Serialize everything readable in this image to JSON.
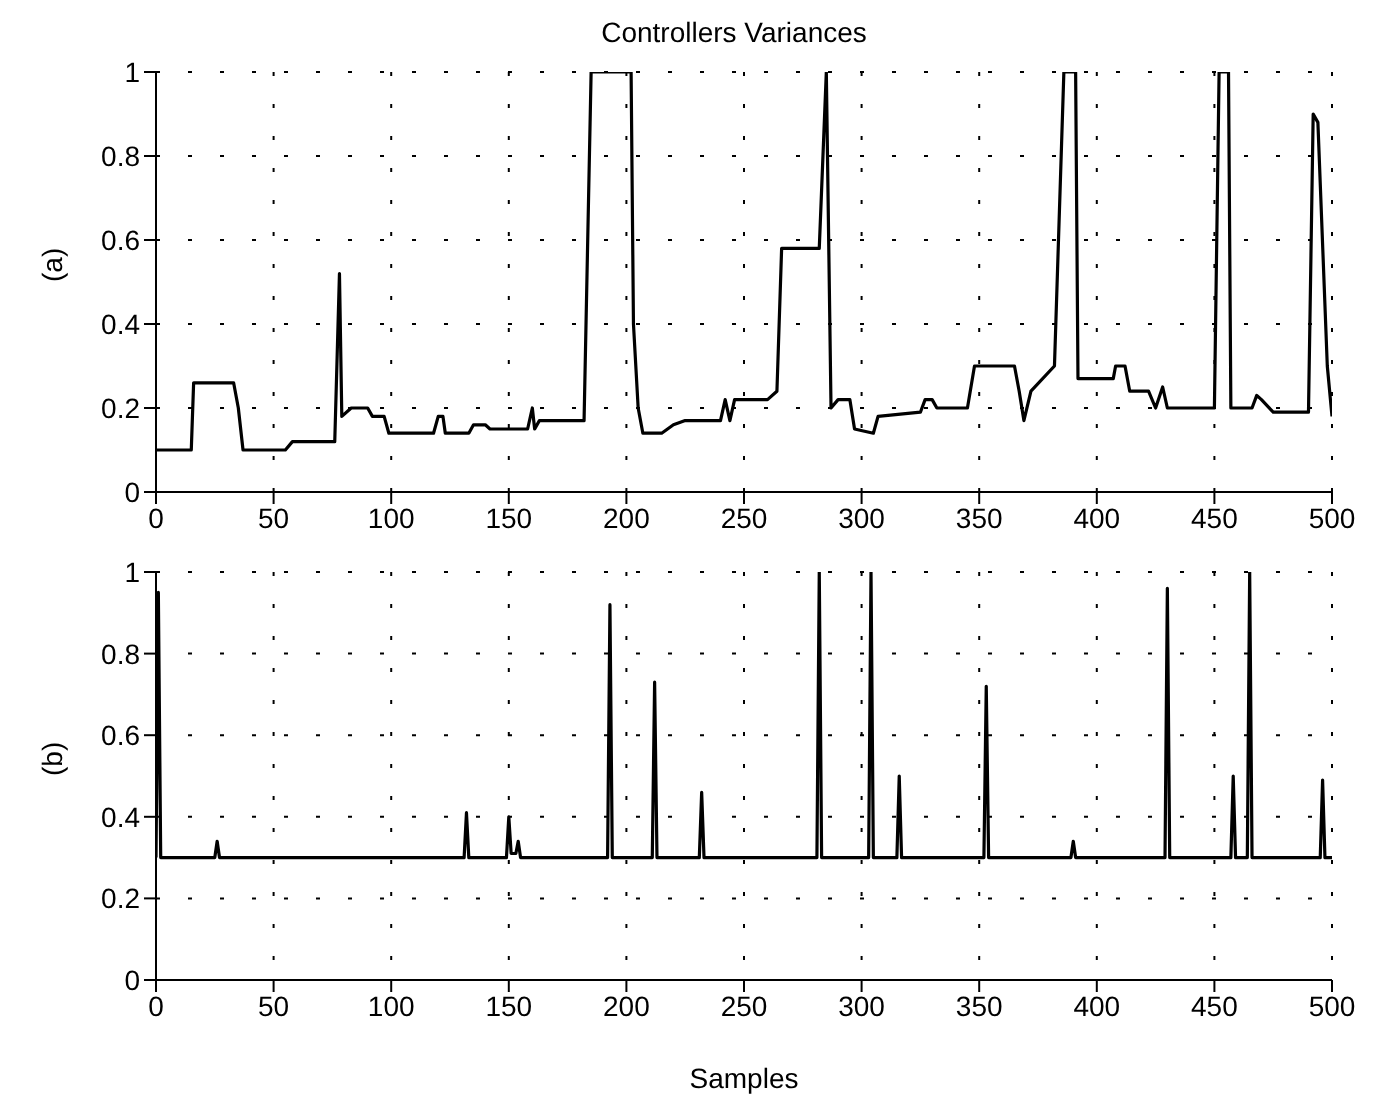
{
  "chart_data": [
    {
      "type": "line",
      "title": "Controllers Variances",
      "ylabel": "(a)",
      "color": "#000000",
      "grid": true,
      "x": [
        0,
        15,
        16,
        33,
        35,
        37,
        55,
        58,
        76,
        78,
        79,
        83,
        90,
        92,
        97,
        99,
        118,
        120,
        122,
        123,
        133,
        135,
        140,
        142,
        158,
        160,
        161,
        163,
        182,
        185,
        202,
        203,
        205,
        207,
        215,
        220,
        225,
        240,
        242,
        244,
        246,
        260,
        264,
        266,
        282,
        285,
        287,
        290,
        295,
        297,
        305,
        307,
        325,
        327,
        330,
        332,
        345,
        348,
        365,
        367,
        369,
        372,
        382,
        386,
        391,
        392,
        407,
        408,
        412,
        414,
        422,
        425,
        428,
        430,
        450,
        452,
        456,
        457,
        466,
        468,
        470,
        475,
        490,
        492,
        494,
        498,
        500
      ],
      "values": [
        0.1,
        0.1,
        0.26,
        0.26,
        0.2,
        0.1,
        0.1,
        0.12,
        0.12,
        0.52,
        0.18,
        0.2,
        0.2,
        0.18,
        0.18,
        0.14,
        0.14,
        0.18,
        0.18,
        0.14,
        0.14,
        0.16,
        0.16,
        0.15,
        0.15,
        0.2,
        0.15,
        0.17,
        0.17,
        1,
        1,
        0.4,
        0.2,
        0.14,
        0.14,
        0.16,
        0.17,
        0.17,
        0.22,
        0.17,
        0.22,
        0.22,
        0.24,
        0.58,
        0.58,
        1,
        0.2,
        0.22,
        0.22,
        0.15,
        0.14,
        0.18,
        0.19,
        0.22,
        0.22,
        0.2,
        0.2,
        0.3,
        0.3,
        0.24,
        0.17,
        0.24,
        0.3,
        1,
        1,
        0.27,
        0.27,
        0.3,
        0.3,
        0.24,
        0.24,
        0.2,
        0.25,
        0.2,
        0.2,
        1,
        1,
        0.2,
        0.2,
        0.23,
        0.22,
        0.19,
        0.19,
        0.9,
        0.88,
        0.3,
        0.18
      ],
      "xlim": [
        0,
        500
      ],
      "xticks": [
        0,
        50,
        100,
        150,
        200,
        250,
        300,
        350,
        400,
        450,
        500
      ],
      "ylim": [
        0,
        1
      ],
      "yticks": [
        0,
        0.2,
        0.4,
        0.6,
        0.8,
        1
      ]
    },
    {
      "type": "line",
      "ylabel": "(b)",
      "xlabel": "Samples",
      "color": "#000000",
      "grid": true,
      "x": [
        0,
        1,
        2,
        25,
        26,
        27,
        131,
        132,
        133,
        149,
        150,
        151,
        153,
        154,
        155,
        192,
        193,
        194,
        211,
        212,
        213,
        231,
        232,
        233,
        281,
        282,
        283,
        303,
        304,
        305,
        315,
        316,
        317,
        352,
        353,
        354,
        389,
        390,
        391,
        429,
        430,
        431,
        457,
        458,
        459,
        464,
        465,
        466,
        495,
        496,
        497,
        500
      ],
      "values": [
        0.3,
        0.95,
        0.3,
        0.3,
        0.34,
        0.3,
        0.3,
        0.41,
        0.3,
        0.3,
        0.4,
        0.31,
        0.31,
        0.34,
        0.3,
        0.3,
        0.92,
        0.3,
        0.3,
        0.73,
        0.3,
        0.3,
        0.46,
        0.3,
        0.3,
        1,
        0.3,
        0.3,
        1,
        0.3,
        0.3,
        0.5,
        0.3,
        0.3,
        0.72,
        0.3,
        0.3,
        0.34,
        0.3,
        0.3,
        0.96,
        0.3,
        0.3,
        0.5,
        0.3,
        0.3,
        1,
        0.3,
        0.3,
        0.49,
        0.3,
        0.3
      ],
      "xlim": [
        0,
        500
      ],
      "xticks": [
        0,
        50,
        100,
        150,
        200,
        250,
        300,
        350,
        400,
        450,
        500
      ],
      "ylim": [
        0,
        1
      ],
      "yticks": [
        0,
        0.2,
        0.4,
        0.6,
        0.8,
        1
      ]
    }
  ]
}
